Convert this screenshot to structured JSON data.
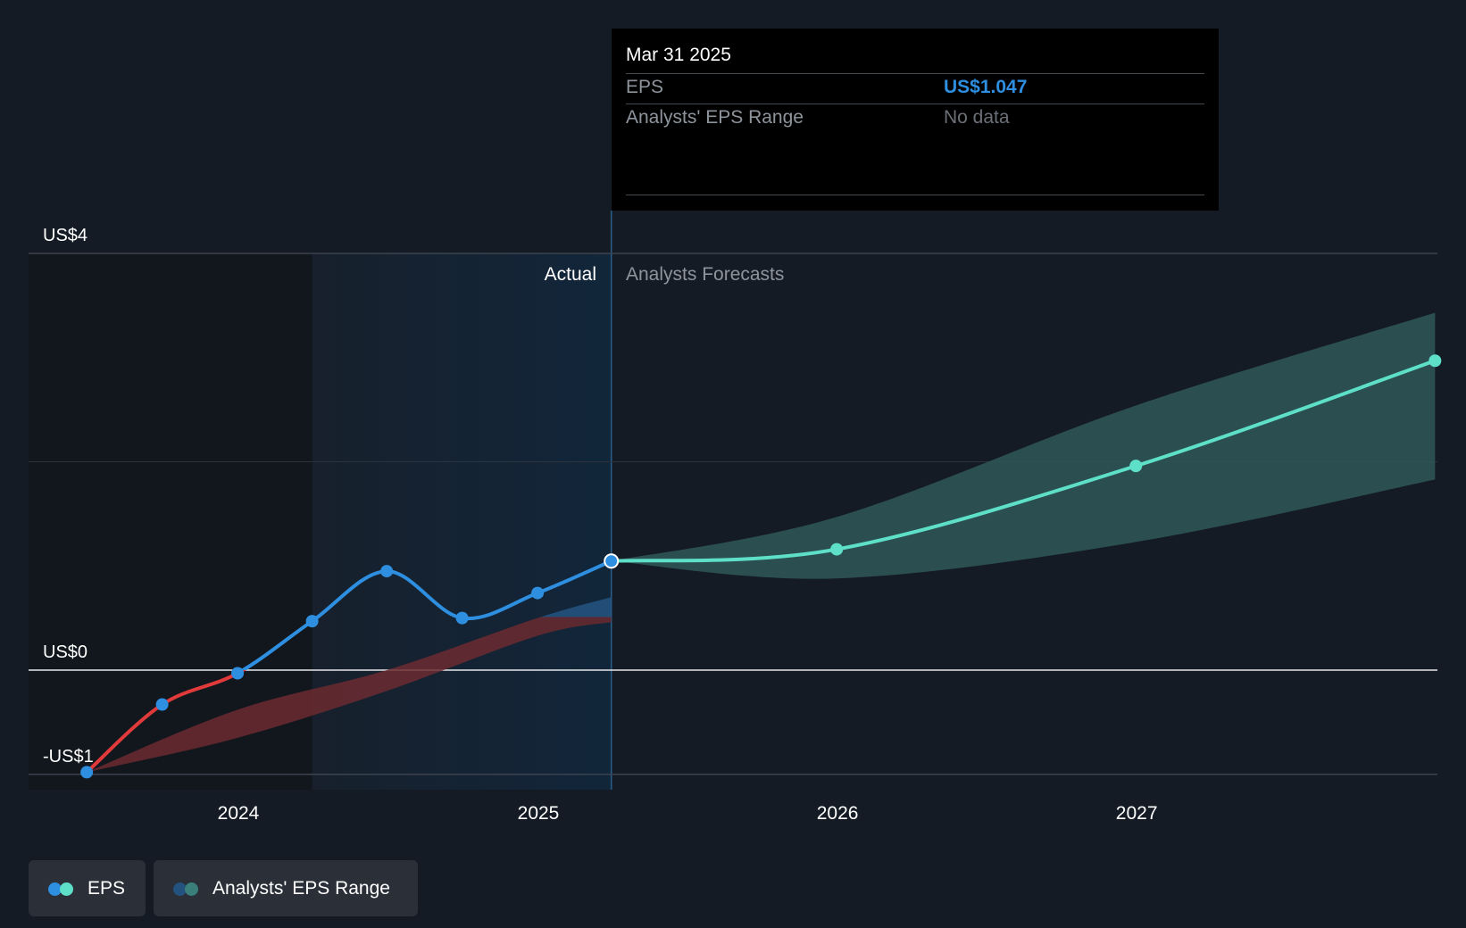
{
  "chart_data": {
    "type": "line",
    "y_tick_labels": [
      "US$4",
      "US$0",
      "-US$1"
    ],
    "x_tick_labels": [
      "2024",
      "2025",
      "2026",
      "2027"
    ],
    "ylim": [
      -1,
      4
    ],
    "region_labels": {
      "actual": "Actual",
      "forecast": "Analysts Forecasts"
    },
    "series": [
      {
        "name": "EPS",
        "points": [
          {
            "x": "2023-06-30",
            "y": -0.98
          },
          {
            "x": "2023-09-30",
            "y": -0.33
          },
          {
            "x": "2023-12-31",
            "y": -0.03
          },
          {
            "x": "2024-03-31",
            "y": 0.47
          },
          {
            "x": "2024-06-30",
            "y": 0.95
          },
          {
            "x": "2024-09-30",
            "y": 0.5
          },
          {
            "x": "2024-12-31",
            "y": 0.74
          },
          {
            "x": "2025-03-31",
            "y": 1.047
          }
        ]
      },
      {
        "name": "EPS forecast",
        "points": [
          {
            "x": "2025-03-31",
            "y": 1.047
          },
          {
            "x": "2025-12-31",
            "y": 1.16
          },
          {
            "x": "2026-12-31",
            "y": 1.96
          },
          {
            "x": "2027-12-31",
            "y": 2.97
          }
        ]
      }
    ],
    "past_range": {
      "x": [
        "2023-06-30",
        "2023-12-31",
        "2024-06-30",
        "2024-12-31",
        "2025-03-31"
      ],
      "low": [
        -0.98,
        -0.65,
        -0.2,
        0.33,
        0.46
      ],
      "high": [
        -0.98,
        -0.38,
        0.0,
        0.5,
        0.7
      ]
    },
    "forecast_range": {
      "x": [
        "2025-03-31",
        "2025-12-31",
        "2026-12-31",
        "2027-12-31"
      ],
      "low": [
        1.047,
        0.88,
        1.23,
        1.83
      ],
      "high": [
        1.047,
        1.47,
        2.54,
        3.43
      ]
    },
    "colors": {
      "eps_negative": "#e03a3a",
      "eps_actual": "#2e8fe0",
      "eps_forecast": "#5ee0c8",
      "forecast_band": "#2f5858",
      "past_band_negative": "#6b2a30",
      "past_band_positive": "#24527e"
    },
    "highlight_date": "2025-03-31",
    "actual_band_start": "2024-03-31"
  },
  "tooltip": {
    "date": "Mar 31 2025",
    "eps_label": "EPS",
    "eps_value": "US$1.047",
    "range_label": "Analysts' EPS Range",
    "range_value": "No data"
  },
  "legend": {
    "items": [
      {
        "label": "EPS",
        "colors": [
          "#2e8fe0",
          "#5ee0c8"
        ]
      },
      {
        "label": "Analysts' EPS Range",
        "colors": [
          "#24527e",
          "#3a7f7a"
        ]
      }
    ]
  }
}
